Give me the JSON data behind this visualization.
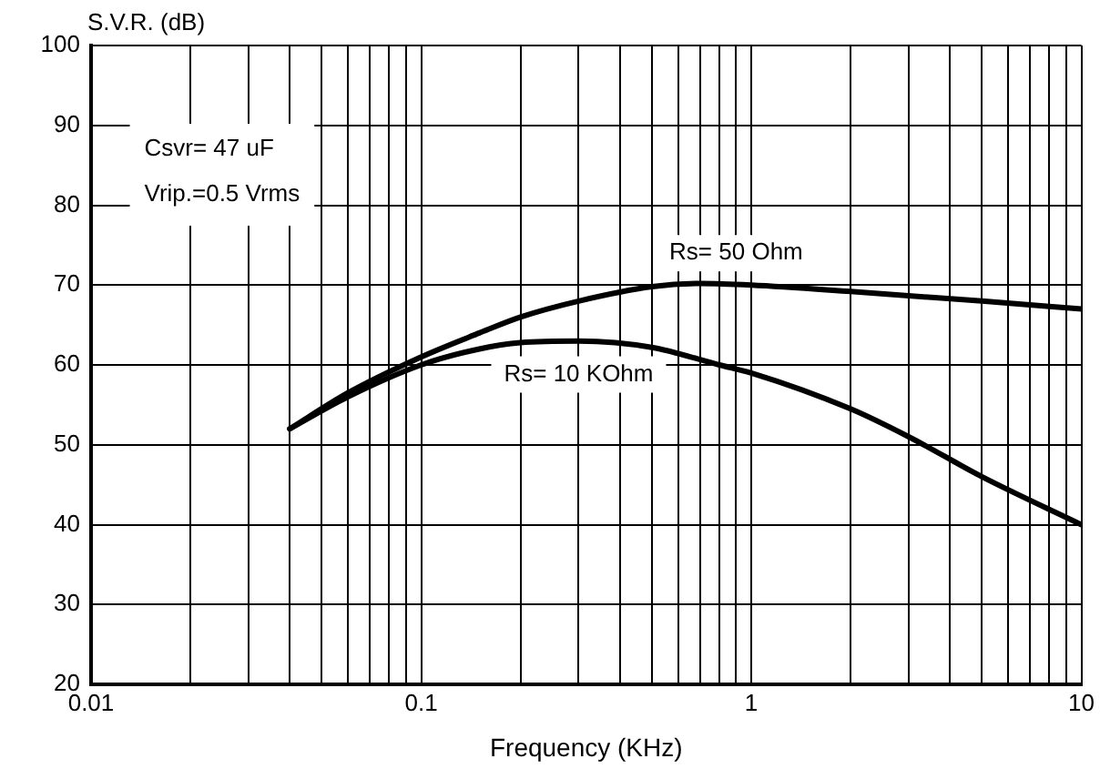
{
  "chart_data": {
    "type": "line",
    "xlabel": "Frequency (KHz)",
    "ylabel": "S.V.R. (dB)",
    "log": "x",
    "grid": true,
    "legend": false,
    "marker": "none",
    "line_style": "solid",
    "xlim": [
      0.01,
      10
    ],
    "ylim": [
      20,
      100
    ],
    "xticks": [
      0.01,
      {
        "value": 0.02,
        "label": null
      },
      {
        "value": 0.03,
        "label": null
      },
      {
        "value": 0.04,
        "label": null
      },
      {
        "value": 0.05,
        "label": null
      },
      {
        "value": 0.06,
        "label": null
      },
      {
        "value": 0.07,
        "label": null
      },
      {
        "value": 0.08,
        "label": null
      },
      {
        "value": 0.09,
        "label": null
      },
      0.1,
      {
        "value": 0.2,
        "label": null
      },
      {
        "value": 0.3,
        "label": null
      },
      {
        "value": 0.4,
        "label": null
      },
      {
        "value": 0.5,
        "label": null
      },
      {
        "value": 0.6,
        "label": null
      },
      {
        "value": 0.7,
        "label": null
      },
      {
        "value": 0.8,
        "label": null
      },
      {
        "value": 0.9,
        "label": null
      },
      1,
      {
        "value": 2,
        "label": null
      },
      {
        "value": 3,
        "label": null
      },
      {
        "value": 4,
        "label": null
      },
      {
        "value": 5,
        "label": null
      },
      {
        "value": 6,
        "label": null
      },
      {
        "value": 7,
        "label": null
      },
      {
        "value": 8,
        "label": null
      },
      {
        "value": 9,
        "label": null
      },
      10
    ],
    "yticks": [
      20,
      30,
      40,
      50,
      60,
      70,
      80,
      90,
      100
    ],
    "annotations": [
      "Csvr= 47 uF",
      "Vrip.=0.5 Vrms"
    ],
    "series": [
      {
        "name": "Rs= 50 Ohm",
        "color": "#000000",
        "x": [
          0.04,
          0.06,
          0.1,
          0.15,
          0.2,
          0.3,
          0.5,
          0.7,
          1,
          2,
          5,
          10
        ],
        "values": [
          52,
          56.5,
          61,
          64,
          66,
          68,
          69.8,
          70.2,
          70,
          69.2,
          68,
          67
        ]
      },
      {
        "name": "Rs= 10 KOhm",
        "color": "#000000",
        "x": [
          0.04,
          0.06,
          0.1,
          0.15,
          0.2,
          0.3,
          0.5,
          0.8,
          1,
          2,
          3,
          5,
          10
        ],
        "values": [
          52,
          56,
          60,
          62,
          62.8,
          63,
          62.2,
          60,
          59,
          54.5,
          51,
          46,
          40
        ]
      }
    ]
  }
}
